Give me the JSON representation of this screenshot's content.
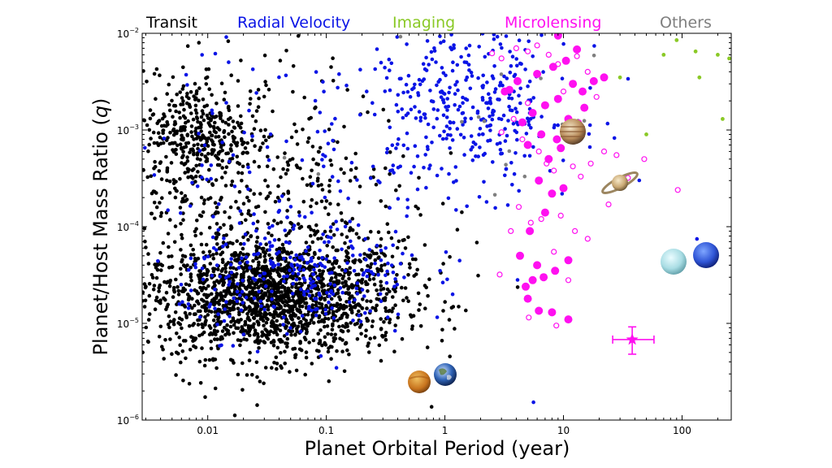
{
  "chart_data": {
    "type": "scatter",
    "title": "",
    "xlabel": "Planet Orbital Period (year)",
    "ylabel_main": "Planet/Host Mass Ratio (",
    "ylabel_var": "q",
    "ylabel_end": ")",
    "x_scale": "log",
    "y_scale": "log",
    "xlim": [
      0.0028,
      260
    ],
    "ylim": [
      1e-06,
      0.01
    ],
    "grid": false,
    "legend_placement": "top, above plot",
    "x_ticks": [
      {
        "value": 0.01,
        "label": "0.01"
      },
      {
        "value": 0.1,
        "label": "0.1"
      },
      {
        "value": 1,
        "label": "1"
      },
      {
        "value": 10,
        "label": "10"
      },
      {
        "value": 100,
        "label": "100"
      }
    ],
    "y_ticks": [
      {
        "value": 1e-06,
        "base": "10",
        "exp": "−6"
      },
      {
        "value": 1e-05,
        "base": "10",
        "exp": "−5"
      },
      {
        "value": 0.0001,
        "base": "10",
        "exp": "−4"
      },
      {
        "value": 0.001,
        "base": "10",
        "exp": "−3"
      },
      {
        "value": 0.01,
        "base": "10",
        "exp": "−2"
      }
    ],
    "series": [
      {
        "name": "Transit",
        "color": "#000000"
      },
      {
        "name": "Radial Velocity",
        "color": "#0a14e6"
      },
      {
        "name": "Imaging",
        "color": "#8ac926"
      },
      {
        "name": "Microlensing",
        "color": "#ff10f0"
      },
      {
        "name": "Others",
        "color": "#7f7f7f"
      }
    ],
    "clusters": [
      {
        "series": "Transit",
        "count": 1600,
        "x_center": 0.035,
        "x_spread_dex": 0.55,
        "y_center": 1.8e-05,
        "y_spread_dex": 0.3
      },
      {
        "series": "Transit",
        "count": 320,
        "x_center": 0.008,
        "x_spread_dex": 0.22,
        "y_center": 0.0009,
        "y_spread_dex": 0.28
      },
      {
        "series": "Transit",
        "count": 650,
        "x_center": 0.02,
        "x_spread_dex": 0.7,
        "y_center": 0.00015,
        "y_spread_dex": 0.8
      },
      {
        "series": "Radial Velocity",
        "count": 260,
        "x_center": 0.06,
        "x_spread_dex": 0.5,
        "y_center": 3e-05,
        "y_spread_dex": 0.3
      },
      {
        "series": "Radial Velocity",
        "count": 380,
        "x_center": 1.6,
        "x_spread_dex": 0.45,
        "y_center": 0.0018,
        "y_spread_dex": 0.45
      },
      {
        "series": "Radial Velocity",
        "count": 140,
        "x_center": 0.05,
        "x_spread_dex": 0.8,
        "y_center": 0.0004,
        "y_spread_dex": 0.8
      },
      {
        "series": "Others",
        "count": 18,
        "x_center": 1.5,
        "x_spread_dex": 0.8,
        "y_center": 0.0015,
        "y_spread_dex": 0.8
      }
    ],
    "imaging_points": [
      [
        70,
        0.006
      ],
      [
        90,
        0.0085
      ],
      [
        130,
        0.0065
      ],
      [
        200,
        0.006
      ],
      [
        250,
        0.0055
      ],
      [
        140,
        0.0035
      ],
      [
        220,
        0.0013
      ],
      [
        50,
        0.0009
      ],
      [
        30,
        0.0035
      ]
    ],
    "microlensing_filled": [
      [
        3.2,
        0.0025
      ],
      [
        4.1,
        0.0032
      ],
      [
        6.0,
        0.0038
      ],
      [
        8.2,
        0.0045
      ],
      [
        10.5,
        0.0052
      ],
      [
        12.0,
        0.003
      ],
      [
        14.5,
        0.0025
      ],
      [
        9.0,
        0.0021
      ],
      [
        7.0,
        0.0018
      ],
      [
        5.5,
        0.0015
      ],
      [
        4.5,
        0.0012
      ],
      [
        6.5,
        0.0009
      ],
      [
        8.8,
        0.0008
      ],
      [
        11.0,
        0.0013
      ],
      [
        15.0,
        0.0017
      ],
      [
        18.0,
        0.0032
      ],
      [
        22.0,
        0.0035
      ],
      [
        5.0,
        0.0007
      ],
      [
        7.5,
        0.0005
      ],
      [
        9.5,
        0.00065
      ],
      [
        6.2,
        0.0003
      ],
      [
        8.0,
        0.00022
      ],
      [
        10.0,
        0.00025
      ],
      [
        7.0,
        0.00014
      ],
      [
        5.2,
        9e-05
      ],
      [
        4.3,
        5e-05
      ],
      [
        6.0,
        4e-05
      ],
      [
        8.5,
        3.5e-05
      ],
      [
        5.5,
        2.8e-05
      ],
      [
        4.8,
        2.4e-05
      ],
      [
        6.8,
        3e-05
      ],
      [
        11.0,
        4.5e-05
      ],
      [
        5.0,
        1.8e-05
      ],
      [
        8.0,
        1.3e-05
      ],
      [
        11.0,
        1.1e-05
      ],
      [
        6.2,
        1.35e-05
      ],
      [
        3.5,
        0.0026
      ],
      [
        9.0,
        0.0095
      ],
      [
        13.0,
        0.0068
      ]
    ],
    "microlensing_open": [
      [
        2.5,
        0.0062
      ],
      [
        3.0,
        0.0055
      ],
      [
        4.0,
        0.007
      ],
      [
        5.0,
        0.0065
      ],
      [
        6.0,
        0.0075
      ],
      [
        7.5,
        0.006
      ],
      [
        9.0,
        0.0048
      ],
      [
        13.0,
        0.0058
      ],
      [
        16.0,
        0.004
      ],
      [
        19.0,
        0.0022
      ],
      [
        5.0,
        0.0019
      ],
      [
        3.8,
        0.0013
      ],
      [
        4.5,
        0.0008
      ],
      [
        6.2,
        0.0006
      ],
      [
        7.2,
        0.00045
      ],
      [
        8.3,
        0.00038
      ],
      [
        12.0,
        0.00042
      ],
      [
        14.0,
        0.00033
      ],
      [
        17.0,
        0.00045
      ],
      [
        22.0,
        0.0006
      ],
      [
        28.0,
        0.00055
      ],
      [
        35.0,
        0.00032
      ],
      [
        48.0,
        0.0005
      ],
      [
        92.0,
        0.00024
      ],
      [
        4.2,
        0.00016
      ],
      [
        5.3,
        0.00011
      ],
      [
        6.5,
        0.00012
      ],
      [
        9.5,
        0.00013
      ],
      [
        12.5,
        9e-05
      ],
      [
        16.0,
        7.5e-05
      ],
      [
        8.3,
        5.5e-05
      ],
      [
        11.0,
        2.8e-05
      ],
      [
        5.1,
        1.15e-05
      ],
      [
        8.7,
        9.5e-06
      ],
      [
        2.9,
        3.2e-05
      ],
      [
        3.6,
        9e-05
      ],
      [
        10.0,
        0.0025
      ],
      [
        13.5,
        0.0012
      ],
      [
        3.0,
        0.00095
      ],
      [
        24.0,
        0.00017
      ]
    ],
    "highlighted_star": {
      "x": 38,
      "y": 6.8e-06,
      "x_err": [
        26,
        58
      ],
      "y_err": [
        4.8e-06,
        9.2e-06
      ]
    }
  },
  "icons": {
    "venus": "venus-icon",
    "earth": "earth-icon",
    "jupiter": "jupiter-icon",
    "saturn": "saturn-icon",
    "uranus": "uranus-icon",
    "neptune": "neptune-icon"
  }
}
